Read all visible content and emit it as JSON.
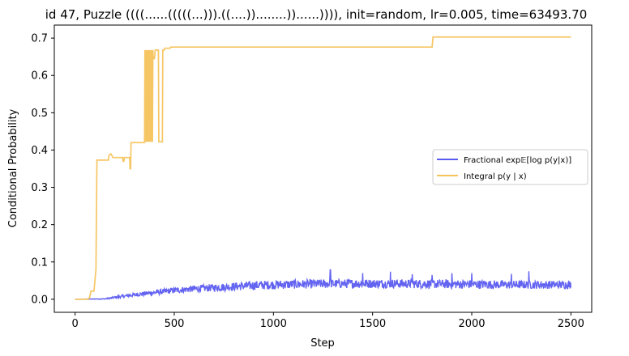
{
  "chart_data": {
    "type": "line",
    "title": "id 47, Puzzle ((((......(((((...))).((....))........))......)))), init=random, lr=0.005, time=63493.70",
    "xlabel": "Step",
    "ylabel": "Conditional Probability",
    "xlim": [
      -105,
      2605
    ],
    "ylim": [
      -0.035,
      0.735
    ],
    "xticks": [
      0,
      500,
      1000,
      1500,
      2000,
      2500
    ],
    "yticks": [
      0.0,
      0.1,
      0.2,
      0.3,
      0.4,
      0.5,
      0.6,
      0.7
    ],
    "xtick_labels": [
      "0",
      "500",
      "1000",
      "1500",
      "2000",
      "2500"
    ],
    "ytick_labels": [
      "0.0",
      "0.1",
      "0.2",
      "0.3",
      "0.4",
      "0.5",
      "0.6",
      "0.7"
    ],
    "legend_position": "center-right",
    "grid": false,
    "series": [
      {
        "name": "Fractional exp𝔼[log p(y|x)]",
        "color": "#5b5bf0",
        "envelope": {
          "x": [
            0,
            150,
            200,
            300,
            400,
            500,
            600,
            700,
            800,
            900,
            1000,
            1200,
            1400,
            1600,
            1800,
            2000,
            2200,
            2400,
            2500
          ],
          "mean": [
            0.0,
            0.001,
            0.005,
            0.012,
            0.018,
            0.024,
            0.028,
            0.031,
            0.034,
            0.037,
            0.039,
            0.041,
            0.042,
            0.042,
            0.041,
            0.04,
            0.039,
            0.039,
            0.039
          ],
          "noise": [
            0.0,
            0.001,
            0.003,
            0.005,
            0.007,
            0.008,
            0.009,
            0.01,
            0.011,
            0.012,
            0.012,
            0.012,
            0.012,
            0.012,
            0.012,
            0.012,
            0.011,
            0.011,
            0.011
          ]
        },
        "spikes": [
          [
            1287,
            0.079
          ],
          [
            1590,
            0.074
          ],
          [
            2288,
            0.075
          ],
          [
            1450,
            0.07
          ],
          [
            1900,
            0.07
          ],
          [
            2000,
            0.07
          ],
          [
            2200,
            0.068
          ],
          [
            1700,
            0.067
          ],
          [
            1800,
            0.065
          ]
        ]
      },
      {
        "name": "Integral p(y | x)",
        "color": "#f5c35c",
        "points": [
          [
            0,
            0.0
          ],
          [
            60,
            0.0
          ],
          [
            72,
            0.003
          ],
          [
            80,
            0.022
          ],
          [
            95,
            0.022
          ],
          [
            105,
            0.08
          ],
          [
            110,
            0.373
          ],
          [
            168,
            0.373
          ],
          [
            170,
            0.385
          ],
          [
            180,
            0.39
          ],
          [
            186,
            0.385
          ],
          [
            190,
            0.38
          ],
          [
            240,
            0.38
          ],
          [
            242,
            0.37
          ],
          [
            246,
            0.37
          ],
          [
            248,
            0.38
          ],
          [
            275,
            0.38
          ],
          [
            277,
            0.35
          ],
          [
            280,
            0.35
          ],
          [
            282,
            0.42
          ],
          [
            350,
            0.42
          ],
          [
            352,
            0.668
          ],
          [
            354,
            0.422
          ],
          [
            356,
            0.668
          ],
          [
            358,
            0.422
          ],
          [
            360,
            0.668
          ],
          [
            362,
            0.422
          ],
          [
            364,
            0.668
          ],
          [
            366,
            0.422
          ],
          [
            368,
            0.668
          ],
          [
            370,
            0.422
          ],
          [
            372,
            0.668
          ],
          [
            374,
            0.422
          ],
          [
            376,
            0.668
          ],
          [
            378,
            0.422
          ],
          [
            380,
            0.668
          ],
          [
            382,
            0.422
          ],
          [
            384,
            0.668
          ],
          [
            386,
            0.422
          ],
          [
            388,
            0.668
          ],
          [
            390,
            0.422
          ],
          [
            392,
            0.668
          ],
          [
            394,
            0.645
          ],
          [
            400,
            0.645
          ],
          [
            404,
            0.668
          ],
          [
            420,
            0.668
          ],
          [
            422,
            0.422
          ],
          [
            440,
            0.422
          ],
          [
            442,
            0.668
          ],
          [
            450,
            0.668
          ],
          [
            452,
            0.673
          ],
          [
            480,
            0.673
          ],
          [
            482,
            0.676
          ],
          [
            1800,
            0.676
          ],
          [
            1805,
            0.703
          ],
          [
            2500,
            0.703
          ]
        ]
      }
    ]
  }
}
